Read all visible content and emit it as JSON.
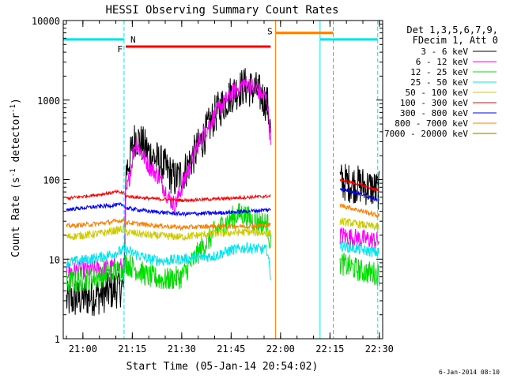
{
  "chart_data": {
    "type": "line",
    "title": "HESSI Observing Summary Count Rates",
    "xlabel": "Start Time (05-Jan-14 20:54:02)",
    "ylabel": "Count Rate (s⁻¹ detector⁻¹)",
    "ylabel_main": "Count Rate (s",
    "ylabel_sup1": "-1",
    "ylabel_mid": " detector",
    "ylabel_sup2": "-1",
    "ylabel_end": ")",
    "y_scale": "log",
    "ylim": [
      1,
      10000
    ],
    "xlim": [
      "20:54:02",
      "22:31:00"
    ],
    "x_ticks": [
      "21:00",
      "21:15",
      "21:30",
      "21:45",
      "22:00",
      "22:15",
      "22:30"
    ],
    "y_ticks": [
      "1",
      "10",
      "100",
      "1000",
      "10000"
    ],
    "footer": "6-Jan-2014 08:10",
    "legend": {
      "placement": "right",
      "header_line1": "Det 1,3,5,6,7,9,",
      "header_line2": "FDecim 1, Att 0",
      "entries": [
        {
          "label": "3 - 6 keV",
          "color": "#000000"
        },
        {
          "label": "6 - 12 keV",
          "color": "#ff00ff"
        },
        {
          "label": "12 - 25 keV",
          "color": "#00dd00"
        },
        {
          "label": "25 - 50 keV",
          "color": "#00e5ee"
        },
        {
          "label": "50 - 100 keV",
          "color": "#cccc00"
        },
        {
          "label": "100 - 300 keV",
          "color": "#ff0000"
        },
        {
          "label": "300 - 800 keV",
          "color": "#0000ff"
        },
        {
          "label": "800 - 7000 keV",
          "color": "#ff7f00"
        },
        {
          "label": "7000 - 20000 keV",
          "color": "#8b7500"
        }
      ]
    },
    "flags": [
      {
        "label": "N",
        "color": "#00e5ee",
        "segments": [
          [
            "20:54:02",
            "21:12:30"
          ],
          [
            "22:12:00",
            "22:29:30"
          ]
        ],
        "value": 5800
      },
      {
        "label": "F",
        "color": "#ff0000",
        "segments": [
          [
            "21:13:00",
            "21:57:00"
          ]
        ],
        "value": 4700
      },
      {
        "label": "S",
        "color": "#ff7f00",
        "segments": [
          [
            "21:58:30",
            "22:16:00"
          ]
        ],
        "value": 7000
      }
    ],
    "night_boundaries": [
      {
        "time": "20:54:02",
        "color": "#00e5ee",
        "style": "solid"
      },
      {
        "time": "21:12:30",
        "color": "#00e5ee",
        "style": "dashed"
      },
      {
        "time": "22:12:00",
        "color": "#00e5ee",
        "style": "solid"
      },
      {
        "time": "22:29:30",
        "color": "#00e5ee",
        "style": "dashed"
      },
      {
        "time": "21:58:30",
        "color": "#ff7f00",
        "style": "solid"
      },
      {
        "time": "22:16:00",
        "color": "#ff7f00",
        "style": "dashed"
      }
    ],
    "gaps": [
      [
        "21:57:00",
        "22:18:00"
      ]
    ],
    "series": [
      {
        "name": "3 - 6 keV",
        "color": "#000000",
        "noise": 0.25,
        "points": [
          [
            "20:55",
            "3"
          ],
          [
            "21:05",
            "3.5"
          ],
          [
            "21:10",
            "4.2"
          ],
          [
            "21:12:30",
            "4.5"
          ],
          [
            "21:13",
            "120"
          ],
          [
            "21:16",
            "350"
          ],
          [
            "21:20",
            "220"
          ],
          [
            "21:25",
            "140"
          ],
          [
            "21:28",
            "100"
          ],
          [
            "21:31",
            "130"
          ],
          [
            "21:36",
            "300"
          ],
          [
            "21:40",
            "650"
          ],
          [
            "21:45",
            "1200"
          ],
          [
            "21:49",
            "1500"
          ],
          [
            "21:53",
            "1300"
          ],
          [
            "21:56",
            "900"
          ],
          [
            "21:57",
            "400"
          ],
          [
            "22:18",
            "95"
          ],
          [
            "22:25",
            "85"
          ],
          [
            "22:30",
            "72"
          ]
        ]
      },
      {
        "name": "6 - 12 keV",
        "color": "#ff00ff",
        "noise": 0.12,
        "points": [
          [
            "20:55",
            "7"
          ],
          [
            "21:05",
            "7.5"
          ],
          [
            "21:10",
            "8"
          ],
          [
            "21:12:30",
            "8"
          ],
          [
            "21:13",
            "60"
          ],
          [
            "21:16",
            "300"
          ],
          [
            "21:20",
            "150"
          ],
          [
            "21:23",
            "110"
          ],
          [
            "21:26",
            "60"
          ],
          [
            "21:28",
            "47"
          ],
          [
            "21:30",
            "80"
          ],
          [
            "21:35",
            "280"
          ],
          [
            "21:40",
            "650"
          ],
          [
            "21:45",
            "1200"
          ],
          [
            "21:49",
            "1650"
          ],
          [
            "21:53",
            "1350"
          ],
          [
            "21:56",
            "1000"
          ],
          [
            "21:57",
            "300"
          ],
          [
            "22:18",
            "20"
          ],
          [
            "22:25",
            "18"
          ],
          [
            "22:30",
            "17"
          ]
        ]
      },
      {
        "name": "12 - 25 keV",
        "color": "#00dd00",
        "noise": 0.15,
        "points": [
          [
            "20:55",
            "5"
          ],
          [
            "21:05",
            "6"
          ],
          [
            "21:10",
            "7"
          ],
          [
            "21:12:30",
            "7.5"
          ],
          [
            "21:13",
            "9"
          ],
          [
            "21:20",
            "6"
          ],
          [
            "21:25",
            "5.5"
          ],
          [
            "21:30",
            "6"
          ],
          [
            "21:35",
            "12"
          ],
          [
            "21:40",
            "22"
          ],
          [
            "21:45",
            "33"
          ],
          [
            "21:48",
            "38"
          ],
          [
            "21:52",
            "30"
          ],
          [
            "21:56",
            "28"
          ],
          [
            "21:57",
            "15"
          ],
          [
            "22:18",
            "9"
          ],
          [
            "22:25",
            "7"
          ],
          [
            "22:30",
            "6.5"
          ]
        ]
      },
      {
        "name": "25 - 50 keV",
        "color": "#00e5ee",
        "noise": 0.07,
        "points": [
          [
            "20:55",
            "9"
          ],
          [
            "21:05",
            "10.5"
          ],
          [
            "21:10",
            "12"
          ],
          [
            "21:12:30",
            "13"
          ],
          [
            "21:13",
            "13"
          ],
          [
            "21:20",
            "10"
          ],
          [
            "21:25",
            "9.5"
          ],
          [
            "21:30",
            "10"
          ],
          [
            "21:40",
            "11"
          ],
          [
            "21:45",
            "13"
          ],
          [
            "21:50",
            "14"
          ],
          [
            "21:56",
            "13"
          ],
          [
            "21:57",
            "6"
          ],
          [
            "22:18",
            "15"
          ],
          [
            "22:25",
            "13"
          ],
          [
            "22:30",
            "12"
          ]
        ]
      },
      {
        "name": "50 - 100 keV",
        "color": "#cccc00",
        "noise": 0.05,
        "points": [
          [
            "20:55",
            "19"
          ],
          [
            "21:05",
            "21"
          ],
          [
            "21:10",
            "23"
          ],
          [
            "21:12:30",
            "24"
          ],
          [
            "21:13",
            "22"
          ],
          [
            "21:20",
            "20"
          ],
          [
            "21:30",
            "19"
          ],
          [
            "21:40",
            "21"
          ],
          [
            "21:50",
            "22"
          ],
          [
            "21:57",
            "21"
          ],
          [
            "22:18",
            "30"
          ],
          [
            "22:25",
            "27"
          ],
          [
            "22:30",
            "25"
          ]
        ]
      },
      {
        "name": "100 - 300 keV",
        "color": "#ff0000",
        "noise": 0.02,
        "points": [
          [
            "20:55",
            "58"
          ],
          [
            "21:05",
            "65"
          ],
          [
            "21:10",
            "70"
          ],
          [
            "21:12:30",
            "68"
          ],
          [
            "21:13",
            "62"
          ],
          [
            "21:20",
            "58"
          ],
          [
            "21:30",
            "55"
          ],
          [
            "21:40",
            "57"
          ],
          [
            "21:50",
            "60"
          ],
          [
            "21:57",
            "62"
          ],
          [
            "22:18",
            "100"
          ],
          [
            "22:25",
            "85"
          ],
          [
            "22:30",
            "72"
          ]
        ]
      },
      {
        "name": "300 - 800 keV",
        "color": "#0000ff",
        "noise": 0.025,
        "points": [
          [
            "20:55",
            "42"
          ],
          [
            "21:05",
            "46"
          ],
          [
            "21:10",
            "48"
          ],
          [
            "21:12:30",
            "48"
          ],
          [
            "21:13",
            "44"
          ],
          [
            "21:20",
            "40"
          ],
          [
            "21:30",
            "37"
          ],
          [
            "21:40",
            "38"
          ],
          [
            "21:50",
            "40"
          ],
          [
            "21:57",
            "42"
          ],
          [
            "22:18",
            "78"
          ],
          [
            "22:25",
            "65"
          ],
          [
            "22:30",
            "55"
          ]
        ]
      },
      {
        "name": "800 - 7000 keV",
        "color": "#ff7f00",
        "noise": 0.03,
        "points": [
          [
            "20:55",
            "26"
          ],
          [
            "21:05",
            "28"
          ],
          [
            "21:10",
            "30"
          ],
          [
            "21:12:30",
            "31"
          ],
          [
            "21:13",
            "29"
          ],
          [
            "21:20",
            "27"
          ],
          [
            "21:30",
            "25"
          ],
          [
            "21:40",
            "26"
          ],
          [
            "21:50",
            "26"
          ],
          [
            "21:57",
            "27"
          ],
          [
            "22:18",
            "48"
          ],
          [
            "22:25",
            "40"
          ],
          [
            "22:30",
            "35"
          ]
        ]
      }
    ]
  }
}
